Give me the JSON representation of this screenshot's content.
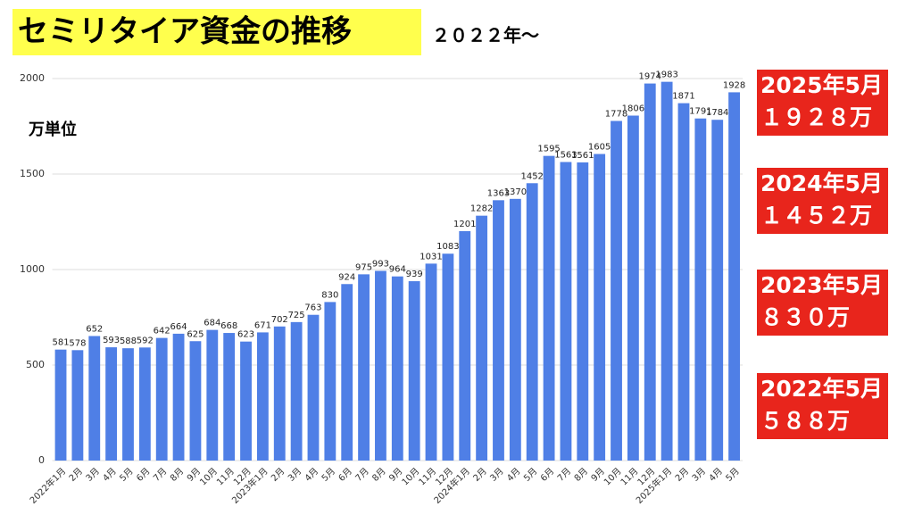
{
  "chart_data": {
    "type": "bar",
    "title": "セミリタイア資金の推移",
    "subtitle": "２０２２年〜",
    "y_label": "万単位",
    "categories": [
      "2022年1月",
      "2月",
      "3月",
      "4月",
      "5月",
      "6月",
      "7月",
      "8月",
      "9月",
      "10月",
      "11月",
      "12月",
      "2023年1月",
      "2月",
      "3月",
      "4月",
      "5月",
      "6月",
      "7月",
      "8月",
      "9月",
      "10月",
      "11月",
      "12月",
      "2024年1月",
      "2月",
      "3月",
      "4月",
      "5月",
      "6月",
      "7月",
      "8月",
      "9月",
      "10月",
      "11月",
      "12月",
      "2025年1月",
      "2月",
      "3月",
      "4月",
      "5月"
    ],
    "values": [
      581,
      578,
      652,
      593,
      588,
      592,
      642,
      664,
      625,
      684,
      668,
      623,
      671,
      702,
      725,
      763,
      830,
      924,
      975,
      993,
      964,
      939,
      1031,
      1083,
      1201,
      1282,
      1363,
      1370,
      1452,
      1595,
      1563,
      1561,
      1605,
      1778,
      1806,
      1974,
      1983,
      1871,
      1791,
      1784,
      1928
    ],
    "color": "#4f7fe6",
    "ylim": [
      0,
      2000
    ],
    "yticks": [
      0,
      500,
      1000,
      1500,
      2000
    ],
    "grid": true,
    "annotations": [
      {
        "lines": [
          "2025年5月",
          "１９２８万"
        ]
      },
      {
        "lines": [
          "2024年5月",
          "１４５２万"
        ]
      },
      {
        "lines": [
          "2023年5月",
          "８３０万"
        ]
      },
      {
        "lines": [
          "2022年5月",
          "５８８万"
        ]
      }
    ]
  }
}
